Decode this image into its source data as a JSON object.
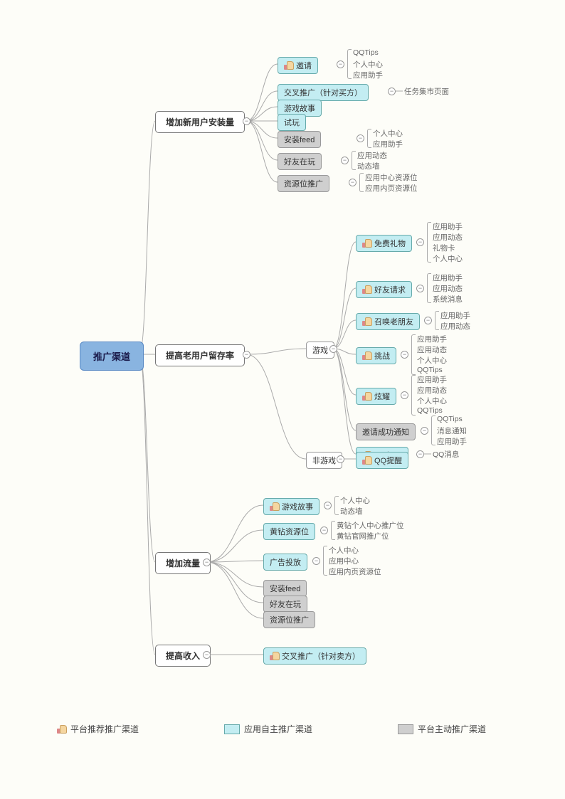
{
  "colors": {
    "bg": "#fdfdf8",
    "root_bg": "#89b4e0",
    "cyan_bg": "#c3edf2",
    "gray_bg": "#cfcfcf",
    "connector": "#aaaaaa"
  },
  "root": {
    "label": "推广渠道"
  },
  "branches": [
    {
      "id": "b1",
      "label": "增加新用户安装量",
      "children": [
        {
          "id": "b1c1",
          "label": "邀请",
          "style": "cyan",
          "thumb": true,
          "leaves": [
            "QQTips",
            "个人中心",
            "应用助手"
          ]
        },
        {
          "id": "b1c2",
          "label": "交叉推广（针对买方）",
          "style": "cyan",
          "leaves": [
            "任务集市页面"
          ]
        },
        {
          "id": "b1c3",
          "label": "游戏故事",
          "style": "cyan"
        },
        {
          "id": "b1c4",
          "label": "试玩",
          "style": "cyan"
        },
        {
          "id": "b1c5",
          "label": "安装feed",
          "style": "gray",
          "leaves": [
            "个人中心",
            "应用助手"
          ]
        },
        {
          "id": "b1c6",
          "label": "好友在玩",
          "style": "gray",
          "leaves": [
            "应用动态",
            "动态墙"
          ]
        },
        {
          "id": "b1c7",
          "label": "资源位推广",
          "style": "gray",
          "leaves": [
            "应用中心资源位",
            "应用内页资源位"
          ]
        }
      ]
    },
    {
      "id": "b2",
      "label": "提高老用户留存率",
      "children": [
        {
          "id": "b2c1",
          "label": "游戏",
          "style": "plain",
          "sub": [
            {
              "label": "免费礼物",
              "style": "cyan",
              "thumb": true,
              "leaves": [
                "应用助手",
                "应用动态",
                "礼物卡",
                "个人中心"
              ]
            },
            {
              "label": "好友请求",
              "style": "cyan",
              "thumb": true,
              "leaves": [
                "应用助手",
                "应用动态",
                "系统消息"
              ]
            },
            {
              "label": "召唤老朋友",
              "style": "cyan",
              "thumb": true,
              "leaves": [
                "应用助手",
                "应用动态"
              ]
            },
            {
              "label": "挑战",
              "style": "cyan",
              "thumb": true,
              "leaves": [
                "应用助手",
                "应用动态",
                "个人中心",
                "QQTips"
              ]
            },
            {
              "label": "炫耀",
              "style": "cyan",
              "thumb": true,
              "leaves": [
                "应用助手",
                "应用动态",
                "个人中心",
                "QQTips"
              ]
            },
            {
              "label": "邀请成功通知",
              "style": "gray",
              "leaves": [
                "QQTips",
                "消息通知",
                "应用助手"
              ]
            },
            {
              "label": "QQ提醒",
              "style": "cyan",
              "thumb": true,
              "leaves": [
                "QQ消息"
              ]
            }
          ]
        },
        {
          "id": "b2c2",
          "label": "非游戏",
          "style": "plain",
          "sub": [
            {
              "label": "QQ提醒",
              "style": "cyan",
              "thumb": true
            }
          ]
        }
      ]
    },
    {
      "id": "b3",
      "label": "增加流量",
      "children": [
        {
          "id": "b3c1",
          "label": "游戏故事",
          "style": "cyan",
          "thumb": true,
          "leaves": [
            "个人中心",
            "动态墙"
          ]
        },
        {
          "id": "b3c2",
          "label": "黄钻资源位",
          "style": "cyan",
          "leaves": [
            "黄钻个人中心推广位",
            "黄钻官网推广位"
          ]
        },
        {
          "id": "b3c3",
          "label": "广告投放",
          "style": "cyan",
          "leaves": [
            "个人中心",
            "应用中心",
            "应用内页资源位"
          ]
        },
        {
          "id": "b3c4",
          "label": "安装feed",
          "style": "gray"
        },
        {
          "id": "b3c5",
          "label": "好友在玩",
          "style": "gray"
        },
        {
          "id": "b3c6",
          "label": "资源位推广",
          "style": "gray"
        }
      ]
    },
    {
      "id": "b4",
      "label": "提高收入",
      "children": [
        {
          "id": "b4c1",
          "label": "交叉推广（针对卖方）",
          "style": "cyan",
          "thumb": true
        }
      ]
    }
  ],
  "legend": [
    {
      "type": "thumb",
      "label": "平台推荐推广渠道"
    },
    {
      "type": "cyan",
      "label": "应用自主推广渠道"
    },
    {
      "type": "gray",
      "label": "平台主动推广渠道"
    }
  ]
}
